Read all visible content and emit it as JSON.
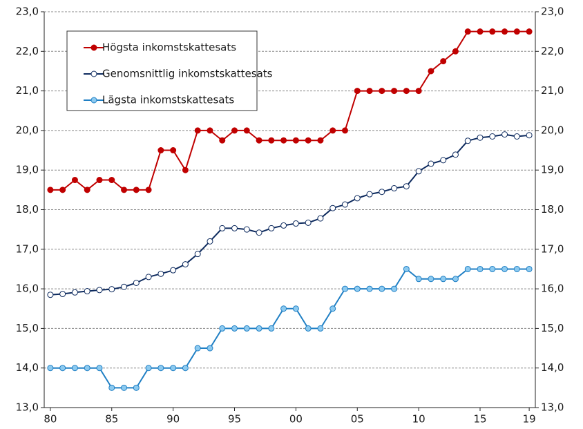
{
  "chart_data": {
    "type": "line",
    "categories": [
      "80",
      null,
      null,
      null,
      null,
      "85",
      null,
      null,
      null,
      null,
      "90",
      null,
      null,
      null,
      null,
      "95",
      null,
      null,
      null,
      null,
      "00",
      null,
      null,
      null,
      null,
      "05",
      null,
      null,
      null,
      null,
      "10",
      null,
      null,
      null,
      null,
      "15",
      null,
      null,
      null,
      "19"
    ],
    "series": [
      {
        "name": "Högsta inkomstskattesats",
        "color": "#c00000",
        "marker_fill": "#c00000",
        "values": [
          18.5,
          18.5,
          18.75,
          18.5,
          18.75,
          18.75,
          18.5,
          18.5,
          18.5,
          19.5,
          19.5,
          19.0,
          20.0,
          20.0,
          19.75,
          20.0,
          20.0,
          19.75,
          19.75,
          19.75,
          19.75,
          19.75,
          19.75,
          20.0,
          20.0,
          21.0,
          21.0,
          21.0,
          21.0,
          21.0,
          21.0,
          21.5,
          21.75,
          22.0,
          22.5,
          22.5,
          22.5,
          22.5,
          22.5,
          22.5
        ]
      },
      {
        "name": "Genomsnittlig inkomstskattesats",
        "color": "#0d2a5e",
        "marker_fill": "#ffffff",
        "values": [
          15.85,
          15.87,
          15.91,
          15.94,
          15.97,
          15.99,
          16.05,
          16.15,
          16.3,
          16.38,
          16.47,
          16.62,
          16.88,
          17.2,
          17.53,
          17.53,
          17.5,
          17.42,
          17.53,
          17.6,
          17.65,
          17.67,
          17.78,
          18.04,
          18.13,
          18.29,
          18.39,
          18.45,
          18.54,
          18.59,
          18.97,
          19.16,
          19.25,
          19.39,
          19.74,
          19.82,
          19.85,
          19.9,
          19.85,
          19.88
        ]
      },
      {
        "name": "Lägsta inkomstskattesats",
        "color": "#1f7fc4",
        "marker_fill": "#8ccaf0",
        "values": [
          14.0,
          14.0,
          14.0,
          14.0,
          14.0,
          13.5,
          13.5,
          13.5,
          14.0,
          14.0,
          14.0,
          14.0,
          14.5,
          14.5,
          15.0,
          15.0,
          15.0,
          15.0,
          15.0,
          15.5,
          15.5,
          15.0,
          15.0,
          15.5,
          16.0,
          16.0,
          16.0,
          16.0,
          16.0,
          16.5,
          16.25,
          16.25,
          16.25,
          16.25,
          16.5,
          16.5,
          16.5,
          16.5,
          16.5,
          16.5
        ]
      }
    ],
    "ylim": [
      13,
      23
    ],
    "yticks": [
      {
        "value": 13,
        "label": "13,0"
      },
      {
        "value": 14,
        "label": "14,0"
      },
      {
        "value": 15,
        "label": "15,0"
      },
      {
        "value": 16,
        "label": "16,0"
      },
      {
        "value": 17,
        "label": "17,0"
      },
      {
        "value": 18,
        "label": "18,0"
      },
      {
        "value": 19,
        "label": "19,0"
      },
      {
        "value": 20,
        "label": "20,0"
      },
      {
        "value": 21,
        "label": "21,0"
      },
      {
        "value": 22,
        "label": "22,0"
      },
      {
        "value": 23,
        "label": "23,0"
      }
    ],
    "y2lim": [
      13,
      23
    ],
    "y2ticks": [
      {
        "value": 13,
        "label": "13,0"
      },
      {
        "value": 14,
        "label": "14,0"
      },
      {
        "value": 15,
        "label": "15,0"
      },
      {
        "value": 16,
        "label": "16,0"
      },
      {
        "value": 17,
        "label": "17,0"
      },
      {
        "value": 18,
        "label": "18,0"
      },
      {
        "value": 19,
        "label": "19,0"
      },
      {
        "value": 20,
        "label": "20,0"
      },
      {
        "value": 21,
        "label": "21,0"
      },
      {
        "value": 22,
        "label": "22,0"
      },
      {
        "value": 23,
        "label": "23,0"
      }
    ],
    "grid": true,
    "legend": "upper left"
  }
}
